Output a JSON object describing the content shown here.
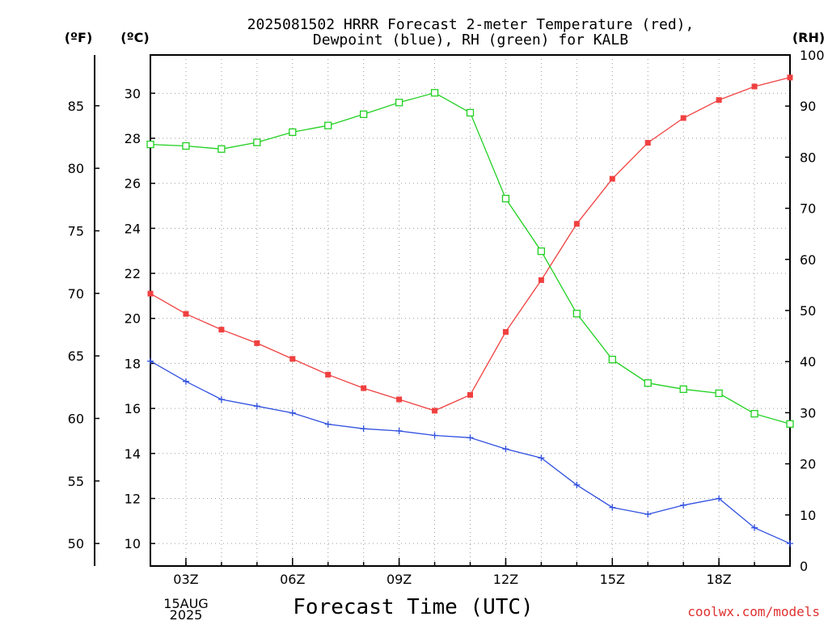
{
  "title_line1": "2025081502 HRRR Forecast 2-meter Temperature (red),",
  "title_line2": "Dewpoint (blue), RH (green) for KALB",
  "left_outer_unit": "(ºF)",
  "left_inner_unit": "(ºC)",
  "right_unit": "(RH)",
  "date_label_line1": "15AUG",
  "date_label_line2": "2025",
  "credit": "coolwx.com/models",
  "colors": {
    "temperature": "#f04040",
    "dewpoint": "#3050e0",
    "rh": "#20d020",
    "credit": "#e03030",
    "grid": "#9a9a9a"
  },
  "chart_data": {
    "type": "line",
    "xlabel": "Forecast Time (UTC)",
    "x": [
      "02Z",
      "03Z",
      "04Z",
      "05Z",
      "06Z",
      "07Z",
      "08Z",
      "09Z",
      "10Z",
      "11Z",
      "12Z",
      "13Z",
      "14Z",
      "15Z",
      "16Z",
      "17Z",
      "18Z",
      "19Z",
      "20Z"
    ],
    "x_tick_labels": [
      "03Z",
      "06Z",
      "09Z",
      "12Z",
      "15Z",
      "18Z"
    ],
    "celsius_axis": {
      "ylim": [
        9,
        31.7
      ],
      "ticks": [
        10,
        12,
        14,
        16,
        18,
        20,
        22,
        24,
        26,
        28,
        30
      ]
    },
    "fahrenheit_axis": {
      "ticks": [
        50,
        55,
        60,
        65,
        70,
        75,
        80,
        85
      ]
    },
    "rh_axis": {
      "ylim": [
        0,
        100
      ],
      "ticks": [
        0,
        10,
        20,
        30,
        40,
        50,
        60,
        70,
        80,
        90,
        100
      ]
    },
    "series": [
      {
        "name": "Temperature (red)",
        "axis": "celsius",
        "marker": "filled-square",
        "values": [
          21.1,
          20.2,
          19.5,
          18.9,
          18.2,
          17.5,
          16.9,
          16.4,
          15.9,
          16.6,
          19.4,
          21.7,
          24.2,
          26.2,
          27.8,
          28.9,
          29.7,
          30.3,
          30.7
        ]
      },
      {
        "name": "Dewpoint (blue)",
        "axis": "celsius",
        "marker": "plus",
        "values": [
          18.1,
          17.2,
          16.4,
          16.1,
          15.8,
          15.3,
          15.1,
          15.0,
          14.8,
          14.7,
          14.2,
          13.8,
          12.6,
          11.6,
          11.3,
          11.7,
          12.0,
          10.7,
          10.0
        ]
      },
      {
        "name": "RH (green)",
        "axis": "rh",
        "marker": "open-square",
        "values": [
          82.5,
          82.2,
          81.6,
          82.9,
          84.9,
          86.2,
          88.4,
          90.7,
          92.6,
          88.7,
          71.9,
          61.6,
          49.4,
          40.4,
          35.8,
          34.6,
          33.8,
          29.8,
          27.8
        ]
      }
    ]
  }
}
